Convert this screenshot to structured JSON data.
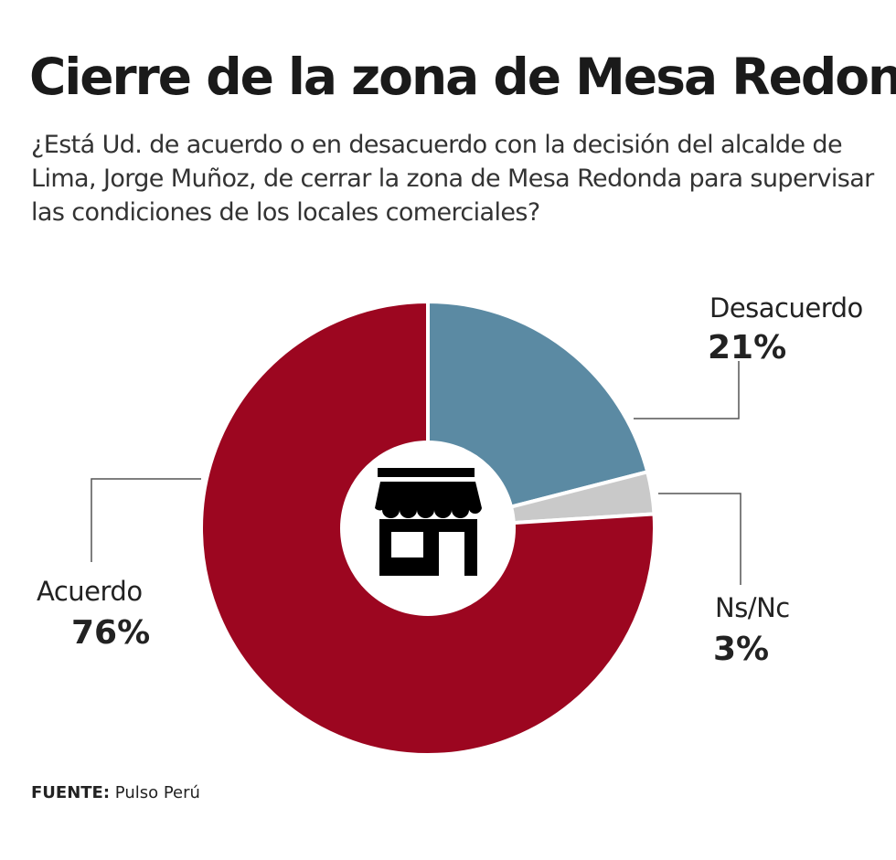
{
  "title": "Cierre de la zona de Mesa Redonda",
  "subtitle": "¿Está Ud. de acuerdo o en desacuerdo con la decisión del alcalde de Lima, Jorge Muñoz, de cerrar la zona de Mesa Redonda para supervisar las condiciones de los locales comerciales?",
  "source": {
    "label": "FUENTE:",
    "value": "Pulso Perú"
  },
  "center_icon": "storefront-icon",
  "chart_data": {
    "type": "pie",
    "donut": true,
    "slices": [
      {
        "label": "Desacuerdo",
        "value": 21,
        "display": "21%",
        "color": "#5b8aa3"
      },
      {
        "label": "Ns/Nc",
        "value": 3,
        "display": "3%",
        "color": "#c9c9c9"
      },
      {
        "label": "Acuerdo",
        "value": 76,
        "display": "76%",
        "color": "#9c0620"
      }
    ]
  }
}
